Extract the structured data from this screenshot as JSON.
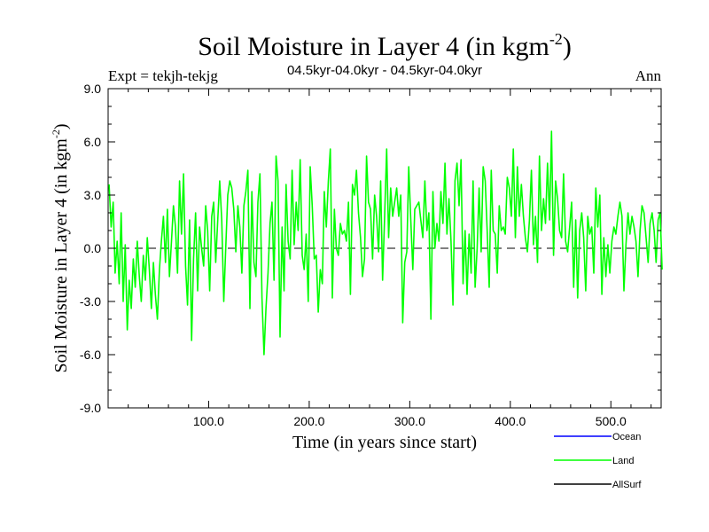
{
  "chart_data": {
    "type": "line",
    "title": "Soil Moisture in Layer 4 (in kgm",
    "title_sup": "-2",
    "title_end": ")",
    "subtitle_left": "Expt = tekjh-tekjg",
    "subtitle_center": "04.5kyr-04.0kyr - 04.5kyr-04.0kyr",
    "subtitle_right": "Ann",
    "xlabel": "Time (in years since start)",
    "ylabel": "Soil Moisture in Layer 4 (in kgm",
    "ylabel_sup": "-2",
    "ylabel_end": ")",
    "xlim": [
      0,
      550
    ],
    "ylim": [
      -9,
      9
    ],
    "xticks": [
      100,
      200,
      300,
      400,
      500
    ],
    "xtick_labels": [
      "100.0",
      "200.0",
      "300.0",
      "400.0",
      "500.0"
    ],
    "yticks": [
      -9,
      -6,
      -3,
      0,
      3,
      6,
      9
    ],
    "ytick_labels": [
      "-9.0",
      "-6.0",
      "-3.0",
      "0.0",
      "3.0",
      "6.0",
      "9.0"
    ],
    "zero_line": true,
    "legend": [
      {
        "name": "Ocean",
        "color": "#0000ff"
      },
      {
        "name": "Land",
        "color": "#00ff00"
      },
      {
        "name": "AllSurf",
        "color": "#000000"
      }
    ],
    "series": [
      {
        "name": "Land",
        "color": "#00ff00",
        "x_start": 1,
        "x_step": 2,
        "values": [
          3.6,
          1.2,
          2.6,
          -1.4,
          0.4,
          -2.0,
          2.0,
          -3.0,
          0.2,
          -4.6,
          -1.8,
          -3.4,
          -0.6,
          -2.2,
          0.4,
          -1.6,
          -3.0,
          -0.4,
          -1.8,
          0.6,
          -1.2,
          -3.4,
          -0.8,
          -2.6,
          -4.0,
          -1.2,
          0.4,
          1.8,
          -0.8,
          2.2,
          -1.6,
          0.4,
          2.4,
          1.2,
          -1.4,
          3.8,
          0.8,
          4.2,
          -1.0,
          -3.2,
          1.6,
          -5.2,
          -0.6,
          2.0,
          -2.4,
          1.2,
          0.0,
          -1.0,
          2.4,
          1.0,
          -2.4,
          1.8,
          2.6,
          -0.8,
          1.6,
          3.8,
          1.6,
          -3.0,
          0.0,
          3.0,
          3.8,
          3.4,
          2.2,
          -0.2,
          2.4,
          1.2,
          -1.4,
          2.4,
          3.2,
          4.4,
          -3.4,
          3.2,
          -0.8,
          -1.6,
          2.6,
          4.2,
          -2.8,
          -6.0,
          -3.4,
          -1.4,
          1.4,
          2.6,
          -1.8,
          5.2,
          3.8,
          -5.0,
          1.2,
          -2.4,
          3.6,
          0.4,
          -0.6,
          4.4,
          0.2,
          2.6,
          1.0,
          5.0,
          -0.4,
          -1.2,
          0.8,
          -3.0,
          4.6,
          2.4,
          -0.6,
          -0.4,
          -3.6,
          -1.2,
          -2.0,
          3.2,
          1.2,
          3.8,
          5.6,
          -2.8,
          2.2,
          0.0,
          -0.4,
          1.4,
          0.8,
          1.0,
          0.4,
          2.6,
          -2.6,
          3.6,
          3.0,
          4.4,
          2.0,
          0.6,
          -1.6,
          -0.6,
          5.2,
          2.6,
          2.2,
          -0.6,
          3.0,
          1.8,
          -0.2,
          3.8,
          -1.8,
          1.8,
          5.6,
          0.6,
          3.4,
          1.8,
          2.6,
          3.4,
          1.8,
          3.0,
          -4.2,
          -0.8,
          -0.2,
          4.6,
          1.6,
          -1.2,
          2.2,
          2.4,
          2.6,
          1.6,
          0.6,
          3.8,
          1.0,
          2.0,
          -4.0,
          3.2,
          0.0,
          1.4,
          0.4,
          3.2,
          1.4,
          4.8,
          0.8,
          2.8,
          0.4,
          -3.2,
          3.8,
          4.8,
          2.4,
          5.0,
          -2.0,
          1.0,
          -2.6,
          0.8,
          -1.4,
          3.8,
          -2.2,
          0.0,
          3.4,
          -0.2,
          4.6,
          3.8,
          1.0,
          -2.2,
          4.4,
          1.0,
          0.8,
          -1.4,
          2.4,
          1.0,
          1.2,
          0.8,
          4.0,
          3.4,
          1.8,
          5.6,
          0.6,
          4.6,
          1.8,
          3.6,
          1.8,
          0.6,
          -0.2,
          1.6,
          4.4,
          0.2,
          1.8,
          -0.8,
          5.2,
          1.0,
          2.8,
          1.4,
          4.8,
          1.6,
          6.6,
          -0.4,
          3.8,
          2.8,
          1.0,
          0.6,
          4.2,
          0.4,
          -0.2,
          1.2,
          2.6,
          -2.2,
          1.6,
          -2.8,
          1.0,
          2.0,
          0.6,
          -2.4,
          1.8,
          0.8,
          1.2,
          -1.4,
          3.4,
          1.2,
          3.0,
          -2.6,
          0.6,
          -1.6,
          0.2,
          -1.4,
          0.4,
          1.2,
          0.8,
          1.8,
          2.6,
          1.8,
          -2.4,
          0.2,
          2.0,
          0.8,
          1.8,
          1.2,
          0.4,
          -1.6,
          1.0,
          2.4,
          2.0,
          0.6,
          -0.8,
          1.4,
          2.0,
          1.0,
          -0.8,
          1.6,
          2.0,
          -1.2
        ]
      }
    ]
  }
}
